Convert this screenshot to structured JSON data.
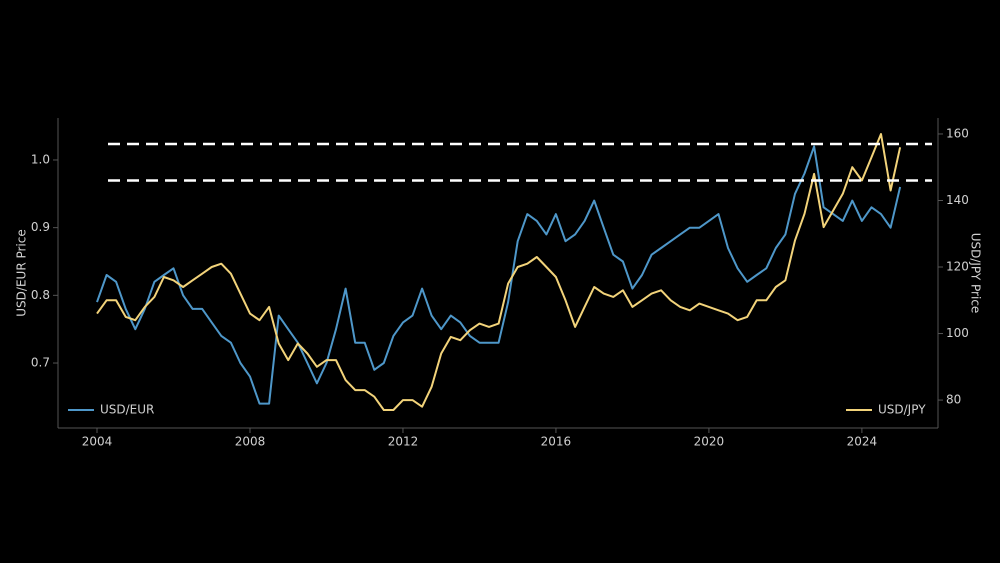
{
  "chart_data": {
    "type": "line",
    "ylabel": "USD/EUR Price",
    "y2label": "USD/JPY Price",
    "x": [
      2004,
      2004.25,
      2004.5,
      2004.75,
      2005,
      2005.25,
      2005.5,
      2005.75,
      2006,
      2006.25,
      2006.5,
      2006.75,
      2007,
      2007.25,
      2007.5,
      2007.75,
      2008,
      2008.25,
      2008.5,
      2008.75,
      2009,
      2009.25,
      2009.5,
      2009.75,
      2010,
      2010.25,
      2010.5,
      2010.75,
      2011,
      2011.25,
      2011.5,
      2011.75,
      2012,
      2012.25,
      2012.5,
      2012.75,
      2013,
      2013.25,
      2013.5,
      2013.75,
      2014,
      2014.25,
      2014.5,
      2014.75,
      2015,
      2015.25,
      2015.5,
      2015.75,
      2016,
      2016.25,
      2016.5,
      2016.75,
      2017,
      2017.25,
      2017.5,
      2017.75,
      2018,
      2018.25,
      2018.5,
      2018.75,
      2019,
      2019.25,
      2019.5,
      2019.75,
      2020,
      2020.25,
      2020.5,
      2020.75,
      2021,
      2021.25,
      2021.5,
      2021.75,
      2022,
      2022.25,
      2022.5,
      2022.75,
      2023,
      2023.25,
      2023.5,
      2023.75,
      2024,
      2024.25,
      2024.5,
      2024.75,
      2025
    ],
    "series": [
      {
        "name": "USD/EUR",
        "color": "#4e97c9",
        "axis": "y",
        "legend": "lower left",
        "values": [
          0.79,
          0.83,
          0.82,
          0.78,
          0.75,
          0.78,
          0.82,
          0.83,
          0.84,
          0.8,
          0.78,
          0.78,
          0.76,
          0.74,
          0.73,
          0.7,
          0.68,
          0.64,
          0.64,
          0.77,
          0.75,
          0.73,
          0.7,
          0.67,
          0.7,
          0.75,
          0.81,
          0.73,
          0.73,
          0.69,
          0.7,
          0.74,
          0.76,
          0.77,
          0.81,
          0.77,
          0.75,
          0.77,
          0.76,
          0.74,
          0.73,
          0.73,
          0.73,
          0.79,
          0.88,
          0.92,
          0.91,
          0.89,
          0.92,
          0.88,
          0.89,
          0.91,
          0.94,
          0.9,
          0.86,
          0.85,
          0.81,
          0.83,
          0.86,
          0.87,
          0.88,
          0.89,
          0.9,
          0.9,
          0.91,
          0.92,
          0.87,
          0.84,
          0.82,
          0.83,
          0.84,
          0.87,
          0.89,
          0.95,
          0.98,
          1.02,
          0.93,
          0.92,
          0.91,
          0.94,
          0.91,
          0.93,
          0.92,
          0.9,
          0.96
        ]
      },
      {
        "name": "USD/JPY",
        "color": "#f2d37a",
        "axis": "y2",
        "legend": "lower right",
        "values": [
          106,
          110,
          110,
          105,
          104,
          108,
          111,
          117,
          116,
          114,
          116,
          118,
          120,
          121,
          118,
          112,
          106,
          104,
          108,
          97,
          92,
          97,
          94,
          90,
          92,
          92,
          86,
          83,
          83,
          81,
          77,
          77,
          80,
          80,
          78,
          84,
          94,
          99,
          98,
          101,
          103,
          102,
          103,
          115,
          120,
          121,
          123,
          120,
          117,
          110,
          102,
          108,
          114,
          112,
          111,
          113,
          108,
          110,
          112,
          113,
          110,
          108,
          107,
          109,
          108,
          107,
          106,
          104,
          105,
          110,
          110,
          114,
          116,
          128,
          136,
          148,
          132,
          137,
          142,
          150,
          146,
          153,
          160,
          143,
          156
        ]
      }
    ],
    "hlines": {
      "axis": "y2",
      "values": [
        157,
        146
      ],
      "color": "#ffffff",
      "style": "dashed"
    },
    "xlim": [
      2002.98,
      2025.99
    ],
    "xticks": [
      2004,
      2008,
      2012,
      2016,
      2020,
      2024
    ],
    "ylim": [
      0.604,
      1.062
    ],
    "yticks": [
      0.7,
      0.8,
      0.9,
      {
        "value": 1,
        "label": "1.0"
      }
    ],
    "y2lim": [
      71.6,
      164.8
    ],
    "y2ticks": [
      80,
      100,
      120,
      140,
      160
    ]
  }
}
